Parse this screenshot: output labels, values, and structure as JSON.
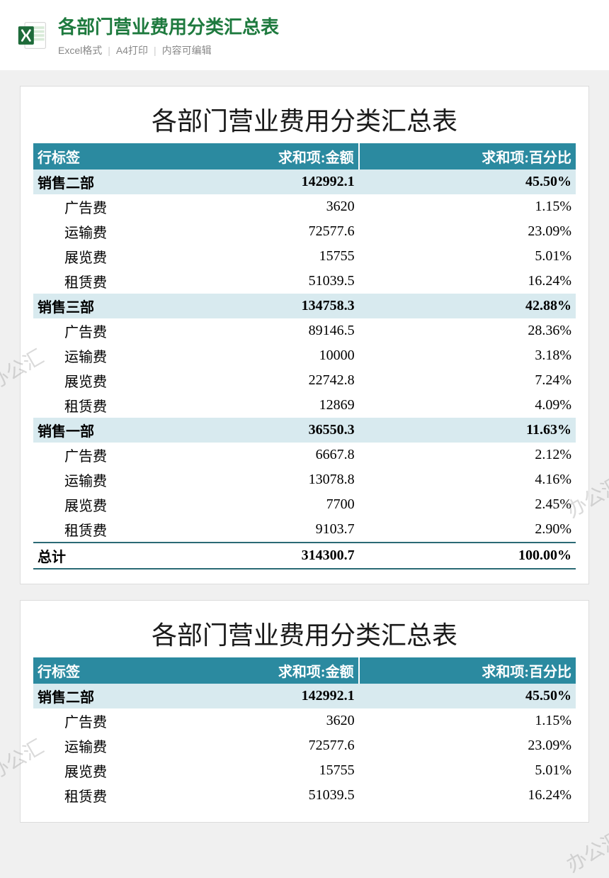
{
  "header": {
    "title": "各部门营业费用分类汇总表",
    "subtitle_parts": [
      "Excel格式",
      "A4打印",
      "内容可编辑"
    ],
    "icon_color_dark": "#1e6b3a",
    "icon_color_light": "#2e9c57"
  },
  "table": {
    "title": "各部门营业费用分类汇总表",
    "columns": [
      "行标签",
      "求和项:金额",
      "求和项:百分比"
    ],
    "header_bg": "#2b8aa0",
    "header_text_color": "#ffffff",
    "group_bg": "#d8eaef",
    "border_color": "#2b6a75",
    "font_size": 20,
    "title_font_size": 36,
    "groups": [
      {
        "name": "销售二部",
        "amount": "142992.1",
        "pct": "45.50%",
        "items": [
          {
            "name": "广告费",
            "amount": "3620",
            "pct": "1.15%"
          },
          {
            "name": "运输费",
            "amount": "72577.6",
            "pct": "23.09%"
          },
          {
            "name": "展览费",
            "amount": "15755",
            "pct": "5.01%"
          },
          {
            "name": "租赁费",
            "amount": "51039.5",
            "pct": "16.24%"
          }
        ]
      },
      {
        "name": "销售三部",
        "amount": "134758.3",
        "pct": "42.88%",
        "items": [
          {
            "name": "广告费",
            "amount": "89146.5",
            "pct": "28.36%"
          },
          {
            "name": "运输费",
            "amount": "10000",
            "pct": "3.18%"
          },
          {
            "name": "展览费",
            "amount": "22742.8",
            "pct": "7.24%"
          },
          {
            "name": "租赁费",
            "amount": "12869",
            "pct": "4.09%"
          }
        ]
      },
      {
        "name": "销售一部",
        "amount": "36550.3",
        "pct": "11.63%",
        "items": [
          {
            "name": "广告费",
            "amount": "6667.8",
            "pct": "2.12%"
          },
          {
            "name": "运输费",
            "amount": "13078.8",
            "pct": "4.16%"
          },
          {
            "name": "展览费",
            "amount": "7700",
            "pct": "2.45%"
          },
          {
            "name": "租赁费",
            "amount": "9103.7",
            "pct": "2.90%"
          }
        ]
      }
    ],
    "total": {
      "name": "总计",
      "amount": "314300.7",
      "pct": "100.00%"
    }
  },
  "second_card_visible_groups": 1,
  "watermark_text": "办公汇"
}
